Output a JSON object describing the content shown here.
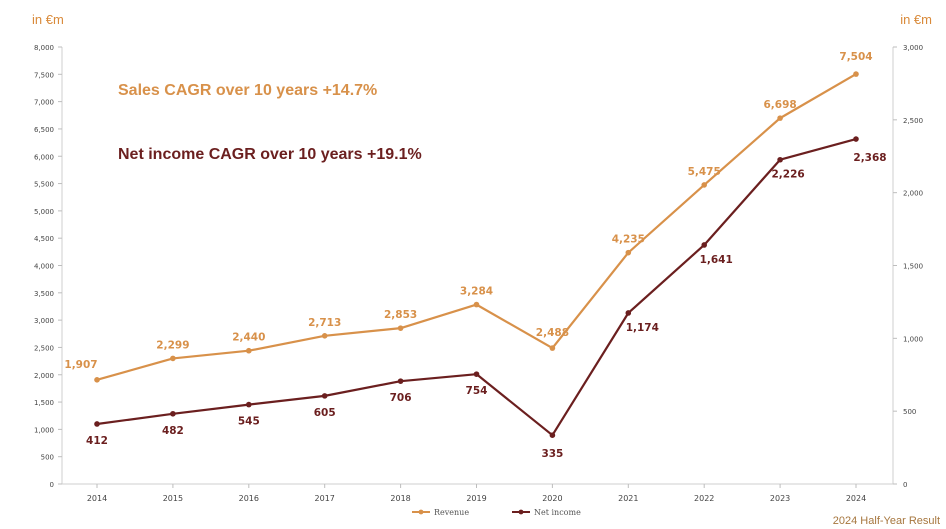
{
  "left_unit": "in €m",
  "right_unit": "in €m",
  "cagr_sales": "Sales CAGR over 10 years +14.7%",
  "cagr_net": "Net income CAGR over 10 years +19.1%",
  "footer": "2024 Half-Year Result",
  "colors": {
    "revenue": "#d8914a",
    "net_income": "#6b1f1f",
    "axis_text": "#444444",
    "grid": "#e2e2e2"
  },
  "chart_data": {
    "type": "line",
    "categories": [
      "2014",
      "2015",
      "2016",
      "2017",
      "2018",
      "2019",
      "2020",
      "2021",
      "2022",
      "2023",
      "2024"
    ],
    "left_axis": {
      "min": 0,
      "max": 8000,
      "step": 500,
      "ticks": [
        "0",
        "500",
        "1,000",
        "1,500",
        "2,000",
        "2,500",
        "3,000",
        "3,500",
        "4,000",
        "4,500",
        "5,000",
        "5,500",
        "6,000",
        "6,500",
        "7,000",
        "7,500",
        "8,000"
      ]
    },
    "right_axis": {
      "min": 0,
      "max": 3000,
      "step": 500,
      "ticks": [
        "0",
        "500",
        "1,000",
        "1,500",
        "2,000",
        "2,500",
        "3,000"
      ]
    },
    "series": [
      {
        "name": "Revenue",
        "axis": "left",
        "values": [
          1907,
          2299,
          2440,
          2713,
          2853,
          3284,
          2488,
          4235,
          5475,
          6698,
          7504
        ],
        "labels": [
          "1,907",
          "2,299",
          "2,440",
          "2,713",
          "2,853",
          "3,284",
          "2,488",
          "4,235",
          "5,475",
          "6,698",
          "7,504"
        ]
      },
      {
        "name": "Net income",
        "axis": "right",
        "values": [
          412,
          482,
          545,
          605,
          706,
          754,
          335,
          1174,
          1641,
          2226,
          2368
        ],
        "labels": [
          "412",
          "482",
          "545",
          "605",
          "706",
          "754",
          "335",
          "1,174",
          "1,641",
          "2,226",
          "2,368"
        ]
      }
    ],
    "legend_position": "bottom"
  }
}
